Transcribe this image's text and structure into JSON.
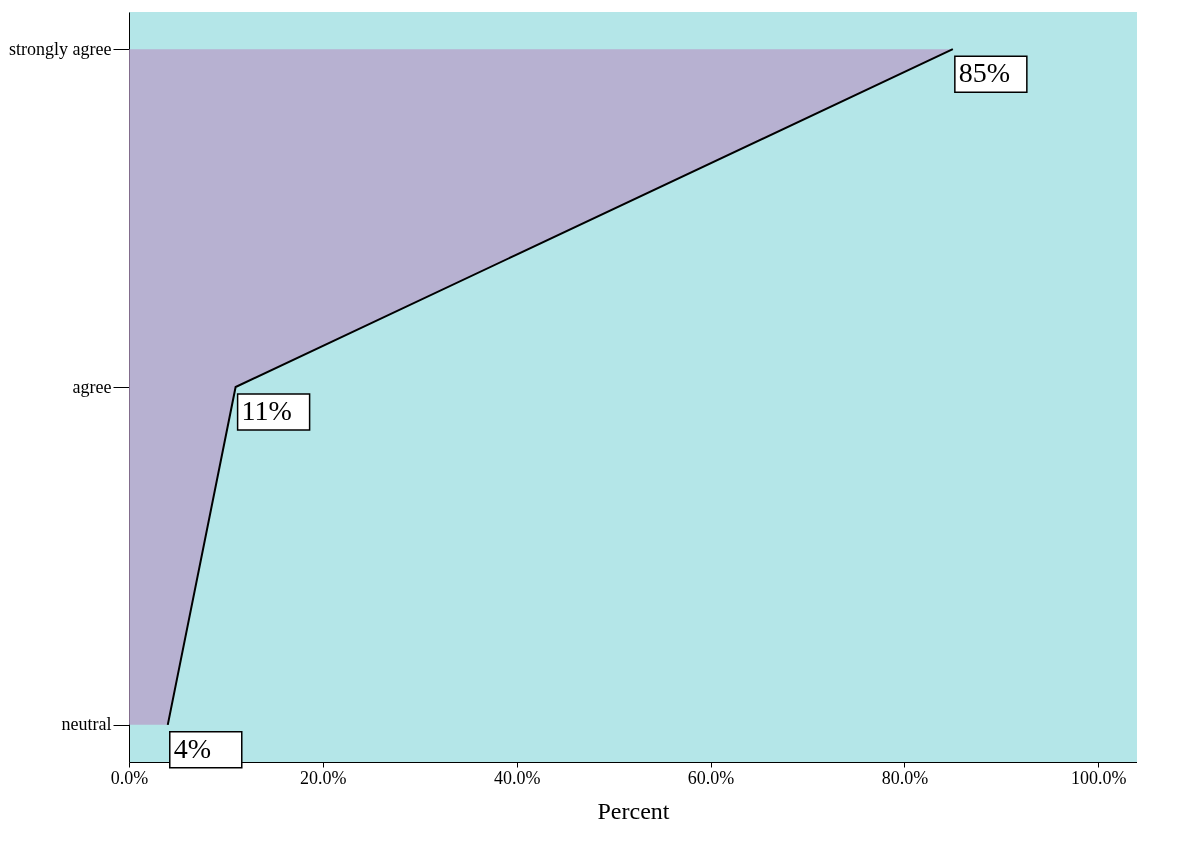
{
  "chart_data": {
    "type": "area",
    "orientation": "horizontal",
    "xlabel": "Percent",
    "categories": [
      "strongly agree",
      "agree",
      "neutral"
    ],
    "series": [
      {
        "color": "#b89ac8",
        "values": [
          85,
          11,
          4
        ],
        "value_labels": [
          "85%",
          "11%",
          "4%"
        ]
      }
    ],
    "xlim": [
      0,
      104
    ],
    "xticks": [
      {
        "value": 0,
        "label": "0.0%"
      },
      {
        "value": 20,
        "label": "20.0%"
      },
      {
        "value": 40,
        "label": "40.0%"
      },
      {
        "value": 60,
        "label": "60.0%"
      },
      {
        "value": 80,
        "label": "80.0%"
      },
      {
        "value": 100,
        "label": "100.0%"
      }
    ]
  }
}
